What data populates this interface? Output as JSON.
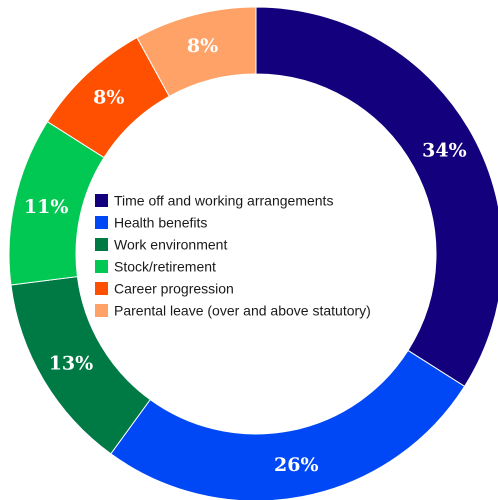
{
  "chart_data": {
    "type": "pie",
    "donut": true,
    "legend_position": "center",
    "categories": [
      "Time off and working arrangements",
      "Health benefits",
      "Work environment",
      "Stock/retirement",
      "Career progression",
      "Parental leave (over and above statutory)"
    ],
    "values": [
      34,
      26,
      13,
      11,
      8,
      8
    ],
    "labels": [
      "34%",
      "26%",
      "13%",
      "11%",
      "8%",
      "8%"
    ],
    "colors": [
      "#13007c",
      "#0048f5",
      "#007a45",
      "#00c853",
      "#ff4f00",
      "#ffa268"
    ],
    "label_colors": [
      "#ffffff",
      "#ffffff",
      "#ffffff",
      "#ffffff",
      "#ffffff",
      "#ffffff"
    ]
  }
}
